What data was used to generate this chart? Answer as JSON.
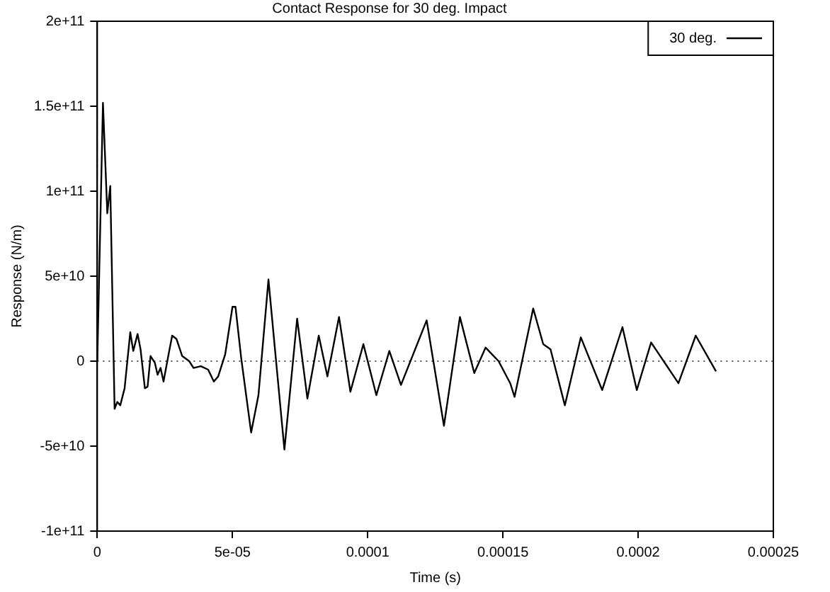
{
  "chart_data": {
    "type": "line",
    "title": "Contact Response for 30 deg. Impact",
    "xlabel": "Time (s)",
    "ylabel": "Response (N/m)",
    "xlim": [
      0,
      0.00025
    ],
    "xticks": [
      0,
      {
        "value": 5e-05,
        "label": "5e-05"
      },
      0.0001,
      0.00015,
      0.0002,
      0.00025
    ],
    "ylim": [
      -100000000000.0,
      200000000000.0
    ],
    "yticks": [
      {
        "value": -100000000000.0,
        "label": "-1e+11"
      },
      {
        "value": -50000000000.0,
        "label": "-5e+10"
      },
      0,
      {
        "value": 50000000000.0,
        "label": "5e+10"
      },
      {
        "value": 100000000000.0,
        "label": "1e+11"
      },
      {
        "value": 150000000000.0,
        "label": "1.5e+11"
      },
      {
        "value": 200000000000.0,
        "label": "2e+11"
      }
    ],
    "grid": false,
    "legend": "top right",
    "marker": "none",
    "line_style": "solid",
    "ref_lines": [
      {
        "axis": "y",
        "value": 0,
        "color": "#555555",
        "line_style": "dotted"
      }
    ],
    "series": [
      {
        "name": "30 deg.",
        "color": "#000000",
        "x": [
          0,
          2.1e-06,
          3.7e-06,
          4.8e-06,
          6.4e-06,
          7.4e-06,
          8.5e-06,
          1.01e-05,
          1.22e-05,
          1.33e-05,
          1.49e-05,
          1.6e-05,
          1.76e-05,
          1.86e-05,
          1.97e-05,
          2.13e-05,
          2.23e-05,
          2.34e-05,
          2.45e-05,
          2.66e-05,
          2.77e-05,
          2.93e-05,
          3.14e-05,
          3.4e-05,
          3.56e-05,
          3.83e-05,
          4.1e-05,
          4.31e-05,
          4.47e-05,
          4.73e-05,
          5e-05,
          5.11e-05,
          5.32e-05,
          5.69e-05,
          5.96e-05,
          6.33e-05,
          6.6e-05,
          6.92e-05,
          7.39e-05,
          7.77e-05,
          8.19e-05,
          8.51e-05,
          8.94e-05,
          9.36e-05,
          9.84e-05,
          0.0001032,
          0.000108,
          0.0001123,
          0.0001218,
          0.0001282,
          0.0001341,
          0.0001394,
          0.0001436,
          0.0001484,
          0.0001527,
          0.0001543,
          0.0001612,
          0.0001649,
          0.0001676,
          0.0001729,
          0.0001788,
          0.0001867,
          0.0001942,
          0.0001995,
          0.0002048,
          0.0002149,
          0.0002213,
          0.0002288
        ],
        "values": [
          0,
          152000000000.0,
          87000000000.0,
          103000000000.0,
          -28000000000.0,
          -24000000000.0,
          -26000000000.0,
          -16000000000.0,
          17000000000.0,
          6000000000.0,
          16000000000.0,
          7000000000.0,
          -16000000000.0,
          -15000000000.0,
          3000000000.0,
          -1000000000.0,
          -8000000000.0,
          -4000000000.0,
          -12000000000.0,
          6000000000.0,
          15000000000.0,
          13000000000.0,
          3000000000.0,
          0,
          -4000000000.0,
          -3000000000.0,
          -5000000000.0,
          -12000000000.0,
          -9000000000.0,
          4000000000.0,
          32000000000.0,
          32000000000.0,
          2000000000.0,
          -42000000000.0,
          -20000000000.0,
          48000000000.0,
          2000000000.0,
          -52000000000.0,
          25000000000.0,
          -22000000000.0,
          15000000000.0,
          -9000000000.0,
          26000000000.0,
          -18000000000.0,
          10000000000.0,
          -20000000000.0,
          6000000000.0,
          -14000000000.0,
          24000000000.0,
          -38000000000.0,
          26000000000.0,
          -7000000000.0,
          8000000000.0,
          0,
          -13000000000.0,
          -21000000000.0,
          31000000000.0,
          10000000000.0,
          7000000000.0,
          -26000000000.0,
          14000000000.0,
          -17000000000.0,
          20000000000.0,
          -17000000000.0,
          11000000000.0,
          -13000000000.0,
          15000000000.0,
          -6000000000.0
        ]
      }
    ]
  }
}
